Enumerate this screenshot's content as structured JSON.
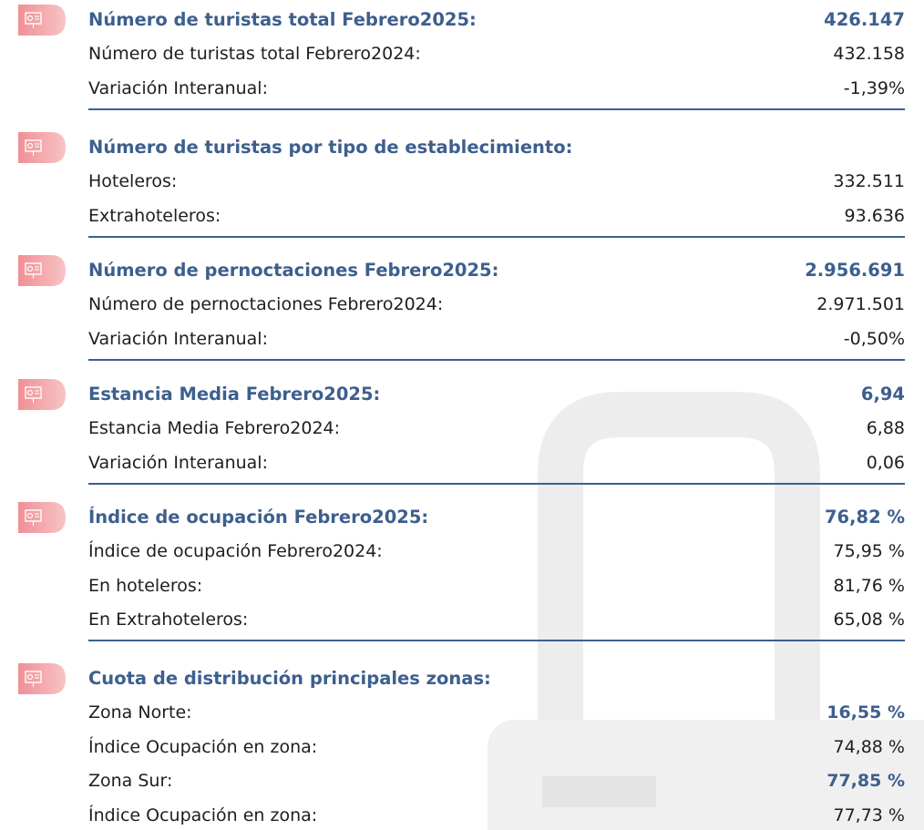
{
  "sections": [
    {
      "title": "Número de turistas total Febrero2025:",
      "value": "426.147",
      "rows": [
        {
          "label": "Número de turistas total Febrero2024:",
          "value": "432.158"
        },
        {
          "label": "Variación Interanual:",
          "value": "-1,39%"
        }
      ]
    },
    {
      "title": "Número de turistas por tipo de establecimiento:",
      "rows": [
        {
          "label": "Hoteleros:",
          "value": "332.511"
        },
        {
          "label": "Extrahoteleros:",
          "value": "93.636"
        }
      ]
    },
    {
      "title": "Número de pernoctaciones Febrero2025:",
      "value": "2.956.691",
      "rows": [
        {
          "label": "Número de pernoctaciones Febrero2024:",
          "value": "2.971.501"
        },
        {
          "label": "Variación Interanual:",
          "value": "-0,50%"
        }
      ]
    },
    {
      "title": "Estancia Media Febrero2025:",
      "value": "6,94",
      "rows": [
        {
          "label": "Estancia Media Febrero2024:",
          "value": "6,88"
        },
        {
          "label": "Variación Interanual:",
          "value": "0,06"
        }
      ]
    },
    {
      "title": "Índice de ocupación Febrero2025:",
      "value": "76,82 %",
      "rows": [
        {
          "label": "Índice de ocupación Febrero2024:",
          "value": "75,95 %"
        },
        {
          "label": "En hoteleros:",
          "value": "81,76 %"
        },
        {
          "label": "En Extrahoteleros:",
          "value": "65,08 %"
        }
      ]
    },
    {
      "title": "Cuota de distribución principales zonas:",
      "rows": [
        {
          "label": "Zona Norte:",
          "value": "16,55 %"
        },
        {
          "label": "Índice Ocupación en zona:",
          "value": "74,88 %"
        },
        {
          "label": "Zona Sur:",
          "value": "77,85 %"
        },
        {
          "label": "Índice Ocupación en zona:",
          "value": "77,73 %"
        }
      ]
    }
  ]
}
